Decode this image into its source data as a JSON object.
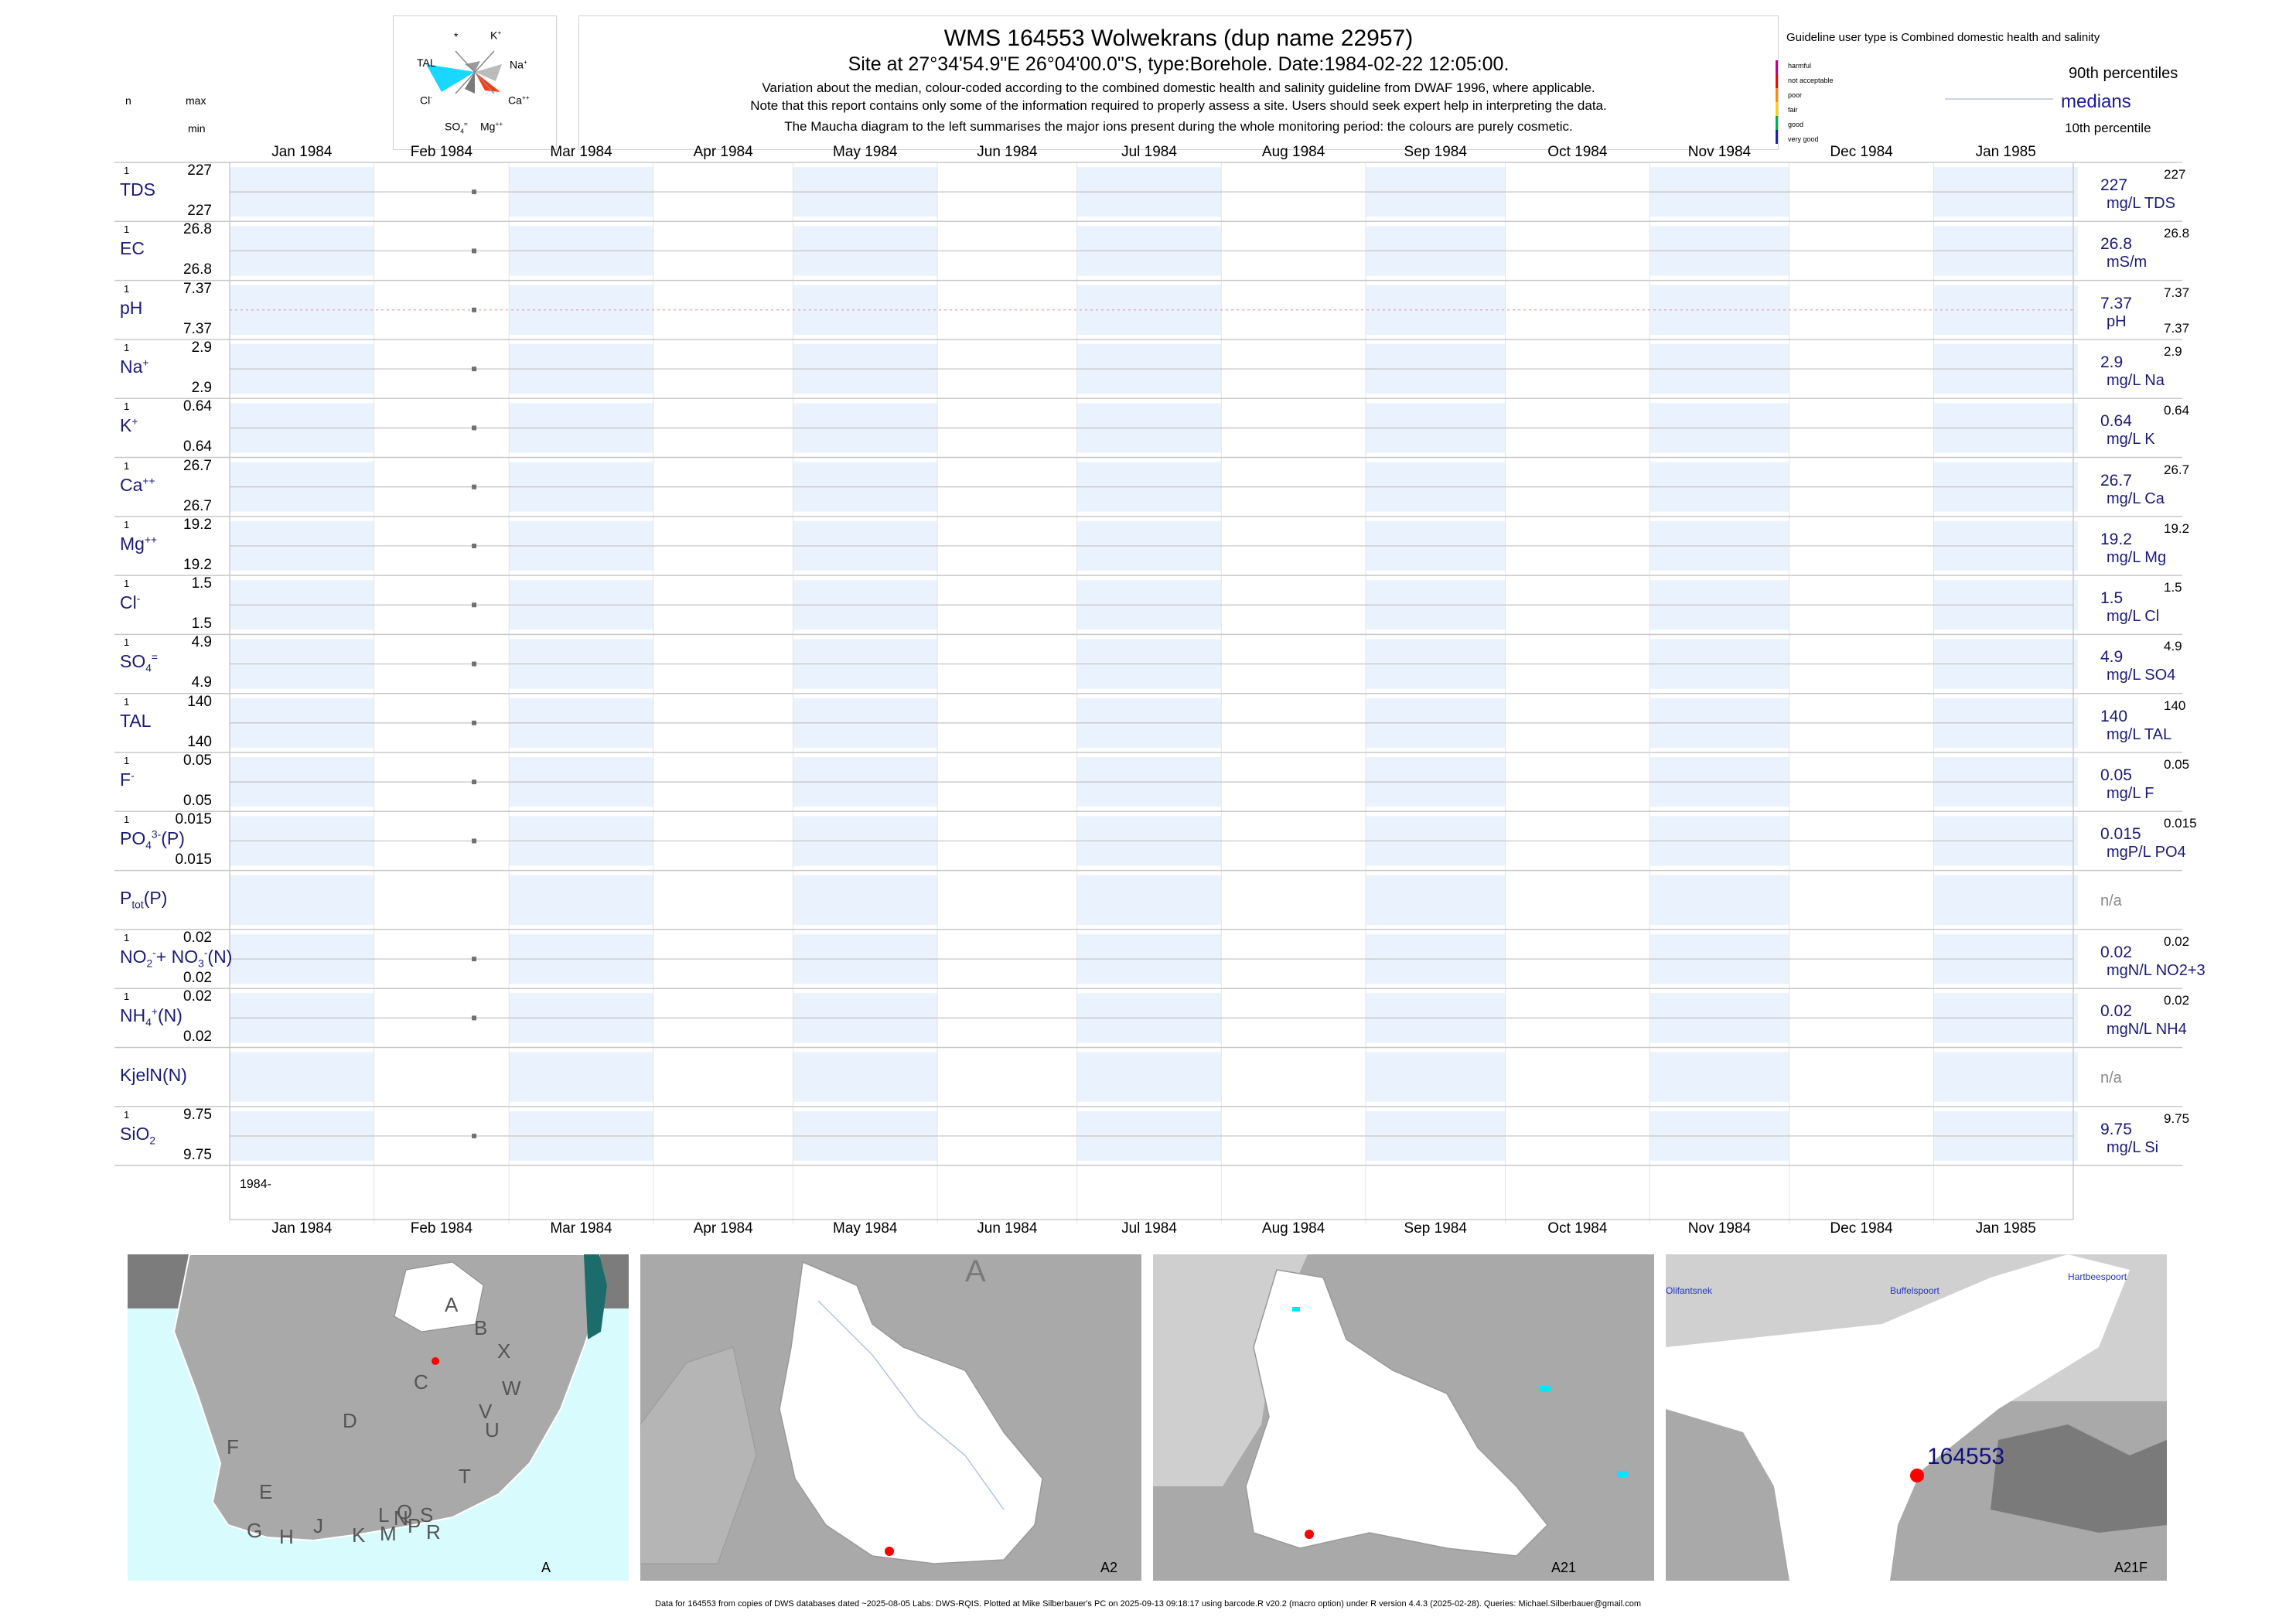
{
  "header": {
    "title": "WMS 164553  Wolwekrans (dup name 22957)",
    "site": "Site at 27°34'54.9\"E 26°04'00.0\"S, type:Borehole. Date:1984-02-22 12:05:00.",
    "note1": "Variation about the median,  colour-coded according to the combined domestic health and salinity guideline from DWAF 1996, where applicable.",
    "note2": "Note that this report contains only some of the information required to properly assess a site. Users should seek expert help in interpreting the data.",
    "note3": "The Maucha diagram to the left summarises the major ions present during the whole monitoring period: the colours are purely cosmetic."
  },
  "maucha": {
    "labels": {
      "star": "*",
      "k": "K",
      "na": "Na",
      "tal": "TAL",
      "ca": "Ca",
      "cl": "Cl",
      "so4": "SO",
      "mg": "Mg"
    }
  },
  "legend": {
    "title": "Guideline user type is Combined domestic health and salinity",
    "classes": [
      "harmful",
      "not acceptable",
      "poor",
      "fair",
      "good",
      "very good"
    ],
    "class_colors": [
      "#c0008a",
      "#ff0000",
      "#ff8c00",
      "#ffd400",
      "#00b050",
      "#1f1fb8"
    ],
    "p90": "90th percentiles",
    "medians": "medians",
    "p10": "10th percentile"
  },
  "col_headers": {
    "n": "n",
    "max": "max",
    "min": "min"
  },
  "months_top": [
    "Jan 1984",
    "Feb 1984",
    "Mar 1984",
    "Apr 1984",
    "May 1984",
    "Jun 1984",
    "Jul 1984",
    "Aug 1984",
    "Sep 1984",
    "Oct 1984",
    "Nov 1984",
    "Dec 1984",
    "Jan 1985"
  ],
  "months_bottom": [
    "Jan 1984",
    "Feb 1984",
    "Mar 1984",
    "Apr 1984",
    "May 1984",
    "Jun 1984",
    "Jul 1984",
    "Aug 1984",
    "Sep 1984",
    "Oct 1984",
    "Nov 1984",
    "Dec 1984",
    "Jan 1985"
  ],
  "year_label": "1984-",
  "chart_data": {
    "type": "scatter",
    "x_axis": {
      "start": "1984-01-01",
      "end": "1985-01-31"
    },
    "sample_date": "1984-02-22",
    "series": [
      {
        "name_html": "TDS",
        "n": "1",
        "max": "227",
        "min": "227",
        "median": "227",
        "unit": "mg/L TDS",
        "rmax": "227",
        "rmin": "",
        "value": 227
      },
      {
        "name_html": "EC",
        "n": "1",
        "max": "26.8",
        "min": "26.8",
        "median": "26.8",
        "unit": "mS/m",
        "rmax": "26.8",
        "rmin": "",
        "value": 26.8
      },
      {
        "name_html": "pH",
        "n": "1",
        "max": "7.37",
        "min": "7.37",
        "median": "7.37",
        "unit": "pH",
        "rmax": "7.37",
        "rmin": "7.37",
        "value": 7.37
      },
      {
        "name_html": "Na",
        "sup": "+",
        "n": "1",
        "max": "2.9",
        "min": "2.9",
        "median": "2.9",
        "unit": "mg/L Na",
        "rmax": "2.9",
        "rmin": "",
        "value": 2.9
      },
      {
        "name_html": "K",
        "sup": "+",
        "n": "1",
        "max": "0.64",
        "min": "0.64",
        "median": "0.64",
        "unit": "mg/L K",
        "rmax": "0.64",
        "rmin": "",
        "value": 0.64
      },
      {
        "name_html": "Ca",
        "sup": "++",
        "n": "1",
        "max": "26.7",
        "min": "26.7",
        "median": "26.7",
        "unit": "mg/L Ca",
        "rmax": "26.7",
        "rmin": "",
        "value": 26.7
      },
      {
        "name_html": "Mg",
        "sup": "++",
        "n": "1",
        "max": "19.2",
        "min": "19.2",
        "median": "19.2",
        "unit": "mg/L Mg",
        "rmax": "19.2",
        "rmin": "",
        "value": 19.2
      },
      {
        "name_html": "Cl",
        "sup": "-",
        "n": "1",
        "max": "1.5",
        "min": "1.5",
        "median": "1.5",
        "unit": "mg/L Cl",
        "rmax": "1.5",
        "rmin": "",
        "value": 1.5
      },
      {
        "name_html": "SO",
        "sub": "4",
        "sup": "=",
        "n": "1",
        "max": "4.9",
        "min": "4.9",
        "median": "4.9",
        "unit": "mg/L SO4",
        "rmax": "4.9",
        "rmin": "",
        "value": 4.9
      },
      {
        "name_html": "TAL",
        "n": "1",
        "max": "140",
        "min": "140",
        "median": "140",
        "unit": "mg/L TAL",
        "rmax": "140",
        "rmin": "",
        "value": 140
      },
      {
        "name_html": "F",
        "sup": "-",
        "n": "1",
        "max": "0.05",
        "min": "0.05",
        "median": "0.05",
        "unit": "mg/L F",
        "rmax": "0.05",
        "rmin": "",
        "value": 0.05
      },
      {
        "name_html": "PO",
        "sub": "4",
        "sup": "3-",
        "tail": "(P)",
        "n": "1",
        "max": "0.015",
        "min": "0.015",
        "median": "0.015",
        "unit": "mgP/L PO4",
        "rmax": "0.015",
        "rmin": "",
        "value": 0.015
      },
      {
        "name_html": "P",
        "sub": "tot",
        "tail": "(P)",
        "n": "",
        "max": "",
        "min": "",
        "median": "",
        "unit": "",
        "na": "n/a",
        "value": null
      },
      {
        "name_html": "NO",
        "sub": "2",
        "sup": "-",
        "tail": "+ NO",
        "sub2": "3",
        "sup2": "-",
        "tail2": "(N)",
        "n": "1",
        "max": "0.02",
        "min": "0.02",
        "median": "0.02",
        "unit": "mgN/L NO2+3",
        "rmax": "0.02",
        "rmin": "",
        "value": 0.02
      },
      {
        "name_html": "NH",
        "sub": "4",
        "sup": "+",
        "tail": "(N)",
        "n": "1",
        "max": "0.02",
        "min": "0.02",
        "median": "0.02",
        "unit": "mgN/L NH4",
        "rmax": "0.02",
        "rmin": "",
        "value": 0.02
      },
      {
        "name_html": "KjelN(N)",
        "n": "",
        "max": "",
        "min": "",
        "median": "",
        "unit": "",
        "na": "n/a",
        "value": null
      },
      {
        "name_html": "SiO",
        "sub": "2",
        "n": "1",
        "max": "9.75",
        "min": "9.75",
        "median": "9.75",
        "unit": "mg/L Si",
        "rmax": "9.75",
        "rmin": "",
        "value": 9.75
      }
    ]
  },
  "maps": [
    {
      "label": "A",
      "regions": [
        "A",
        "B",
        "X",
        "C",
        "W",
        "V",
        "D",
        "U",
        "F",
        "T",
        "E",
        "G",
        "H",
        "J",
        "K",
        "L",
        "N",
        "Q",
        "M",
        "P",
        "S",
        "R"
      ]
    },
    {
      "label": "A2",
      "regions": [
        "A"
      ]
    },
    {
      "label": "A21",
      "regions": []
    },
    {
      "label": "A21F",
      "regions": [
        "Olifantsnek",
        "Buffelspoort",
        "Hartbeespoort"
      ],
      "site": "164553"
    }
  ],
  "footer": "Data for 164553 from copies of DWS databases dated ~2025-08-05 Labs: DWS-RQIS. Plotted at Mike Silberbauer's PC on 2025-09-13 09:18:17 using barcode.R v20.2 (macro option) under R version 4.4.3 (2025-02-28). Queries: Michael.Silberbauer@gmail.com"
}
